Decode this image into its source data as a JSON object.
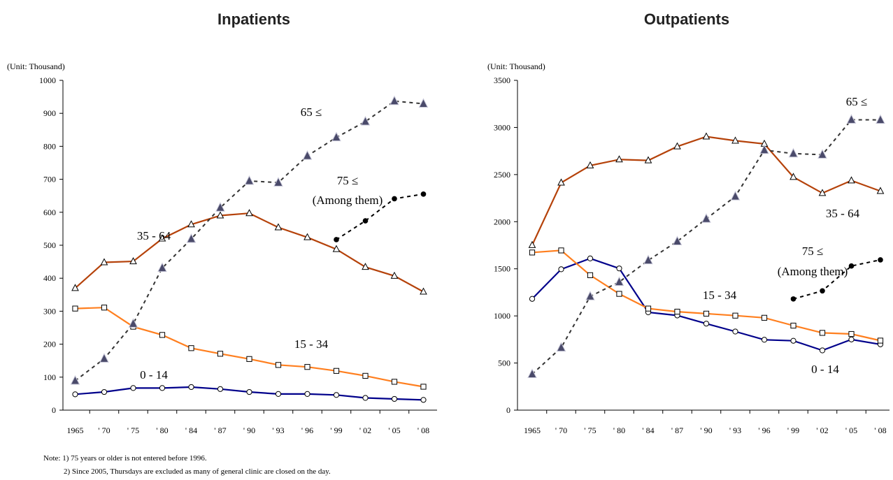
{
  "notes": [
    "Note: 1) 75 years or older is not entered before 1996.",
    "2) Since 2005, Thursdays are excluded as many of general clinic are closed on the day."
  ],
  "chart_data": [
    {
      "type": "line",
      "title": "Inpatients",
      "unit_label": "(Unit: Thousand)",
      "ylim": [
        0,
        1000
      ],
      "yticks": [
        "0",
        "100",
        "200",
        "300",
        "400",
        "500",
        "600",
        "700",
        "800",
        "900",
        "1000"
      ],
      "categories": [
        "1965",
        "' 70",
        "' 75",
        "' 80",
        "' 84",
        "' 87",
        "' 90",
        "' 93",
        "' 96",
        "' 99",
        "' 02",
        "' 05",
        "' 08"
      ],
      "series": [
        {
          "name": "0 - 14",
          "color": "#00008B",
          "marker": "circle-open",
          "dashed": false,
          "values": [
            48,
            55,
            67,
            67,
            70,
            64,
            55,
            49,
            49,
            46,
            37,
            34,
            31
          ]
        },
        {
          "name": "15 - 34",
          "color": "#FF7F1F",
          "marker": "square-open",
          "dashed": false,
          "values": [
            308,
            311,
            253,
            228,
            188,
            171,
            155,
            137,
            131,
            119,
            104,
            86,
            71
          ]
        },
        {
          "name": "35 - 64",
          "color": "#B5420A",
          "marker": "triangle-open",
          "dashed": false,
          "values": [
            370,
            448,
            451,
            520,
            563,
            590,
            597,
            554,
            524,
            488,
            434,
            407,
            359
          ]
        },
        {
          "name": "65 ≤",
          "color": "#333333",
          "marker": "triangle-filled",
          "dashed": true,
          "values": [
            89,
            156,
            262,
            431,
            519,
            614,
            695,
            690,
            771,
            827,
            875,
            937,
            929
          ]
        },
        {
          "name": "75 ≤",
          "sublabel": "(Among them)",
          "color": "#000000",
          "marker": "dot",
          "dashed": true,
          "values": [
            null,
            null,
            null,
            null,
            null,
            null,
            null,
            null,
            null,
            517,
            574,
            641,
            655
          ]
        }
      ]
    },
    {
      "type": "line",
      "title": "Outpatients",
      "unit_label": "(Unit: Thousand)",
      "ylim": [
        0,
        3500
      ],
      "yticks": [
        "0",
        "500",
        "1000",
        "1500",
        "2000",
        "2500",
        "3000",
        "3500"
      ],
      "categories": [
        "1965",
        "' 70",
        "' 75",
        "' 80",
        "' 84",
        "' 87",
        "' 90",
        "' 93",
        "' 96",
        "' 99",
        "' 02",
        "' 05",
        "' 08"
      ],
      "series": [
        {
          "name": "0 - 14",
          "color": "#00008B",
          "marker": "circle-open",
          "dashed": false,
          "values": [
            1181,
            1495,
            1610,
            1504,
            1038,
            1005,
            918,
            834,
            747,
            736,
            634,
            750,
            698
          ]
        },
        {
          "name": "15 - 34",
          "color": "#FF7F1F",
          "marker": "square-open",
          "dashed": false,
          "values": [
            1673,
            1695,
            1432,
            1234,
            1078,
            1045,
            1024,
            1003,
            980,
            897,
            820,
            808,
            738
          ]
        },
        {
          "name": "35 - 64",
          "color": "#B5420A",
          "marker": "triangle-open",
          "dashed": false,
          "values": [
            1751,
            2414,
            2596,
            2660,
            2650,
            2798,
            2903,
            2859,
            2826,
            2474,
            2303,
            2437,
            2325
          ]
        },
        {
          "name": "65 ≤",
          "color": "#333333",
          "marker": "triangle-filled",
          "dashed": true,
          "values": [
            382,
            663,
            1207,
            1360,
            1590,
            1791,
            2030,
            2268,
            2760,
            2723,
            2711,
            3082,
            3080
          ]
        },
        {
          "name": "75 ≤",
          "sublabel": "(Among them)",
          "color": "#000000",
          "marker": "dot",
          "dashed": true,
          "values": [
            null,
            null,
            null,
            null,
            null,
            null,
            null,
            null,
            null,
            1180,
            1266,
            1530,
            1595
          ]
        }
      ]
    }
  ]
}
